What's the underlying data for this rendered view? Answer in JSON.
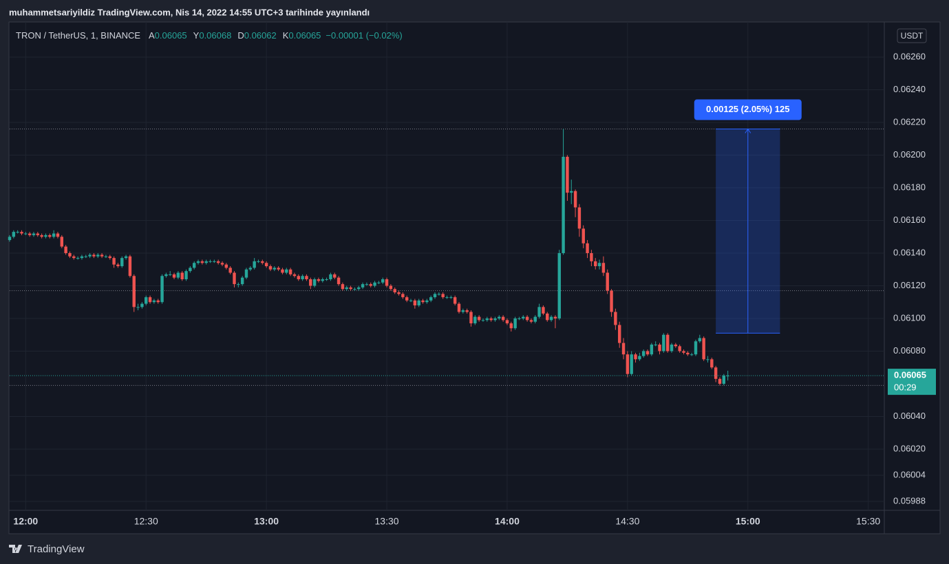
{
  "header": "muhammetsariyildiz TradingView.com, Nis 14, 2022 14:55 UTC+3 tarihinde yayınlandı",
  "footer": "TradingView",
  "chart_data": {
    "type": "candlestick",
    "legend": {
      "symbol": "TRON / TetherUS, 1, BINANCE",
      "fields": [
        {
          "label": "A",
          "value": 0.06065
        },
        {
          "label": "Y",
          "value": 0.06068
        },
        {
          "label": "D",
          "value": 0.06062
        },
        {
          "label": "K",
          "value": 0.06065
        }
      ],
      "change": "−0.00001 (−0.02%)"
    },
    "currency": "USDT",
    "countdown": "00:29",
    "up_color": "#26a69a",
    "down_color": "#ef5350",
    "grid": true,
    "xlim": [
      "11:56",
      "15:34"
    ],
    "xticks": [
      "12:00",
      "12:30",
      "13:00",
      "13:30",
      "14:00",
      "14:30",
      "15:00",
      "15:30"
    ],
    "ylim": [
      0.059825,
      0.062815
    ],
    "yticks": [
      {
        "value": 0.0626,
        "label": "0.06260"
      },
      {
        "value": 0.0624,
        "label": "0.06240"
      },
      {
        "value": 0.0622,
        "label": "0.06220"
      },
      {
        "value": 0.062,
        "label": "0.06200"
      },
      {
        "value": 0.0618,
        "label": "0.06180"
      },
      {
        "value": 0.0616,
        "label": "0.06160"
      },
      {
        "value": 0.0614,
        "label": "0.06140"
      },
      {
        "value": 0.0612,
        "label": "0.06120"
      },
      {
        "value": 0.061,
        "label": "0.06100"
      },
      {
        "value": 0.0608,
        "label": "0.06080"
      },
      {
        "value": 0.0604,
        "label": "0.06040"
      },
      {
        "value": 0.0602,
        "label": "0.06020"
      },
      {
        "value": 0.06004,
        "label": "0.06004"
      },
      {
        "value": 0.05988,
        "label": "0.05988"
      }
    ],
    "hlines": [
      0.06216,
      0.06117,
      0.06059
    ],
    "measure": {
      "from": 0.06091,
      "to": 0.06216,
      "x": [
        "14:52",
        "15:08"
      ],
      "label": "0.00125 (2.05%) 125"
    },
    "x": [
      "11:56",
      "11:57",
      "11:58",
      "11:59",
      "12:00",
      "12:01",
      "12:02",
      "12:03",
      "12:04",
      "12:05",
      "12:06",
      "12:07",
      "12:08",
      "12:09",
      "12:10",
      "12:11",
      "12:12",
      "12:13",
      "12:14",
      "12:15",
      "12:16",
      "12:17",
      "12:18",
      "12:19",
      "12:20",
      "12:21",
      "12:22",
      "12:23",
      "12:24",
      "12:25",
      "12:26",
      "12:27",
      "12:28",
      "12:29",
      "12:30",
      "12:31",
      "12:32",
      "12:33",
      "12:34",
      "12:35",
      "12:36",
      "12:37",
      "12:38",
      "12:39",
      "12:40",
      "12:41",
      "12:42",
      "12:43",
      "12:44",
      "12:45",
      "12:46",
      "12:47",
      "12:48",
      "12:49",
      "12:50",
      "12:51",
      "12:52",
      "12:53",
      "12:54",
      "12:55",
      "12:56",
      "12:57",
      "12:58",
      "12:59",
      "13:00",
      "13:01",
      "13:02",
      "13:03",
      "13:04",
      "13:05",
      "13:06",
      "13:07",
      "13:08",
      "13:09",
      "13:10",
      "13:11",
      "13:12",
      "13:13",
      "13:14",
      "13:15",
      "13:16",
      "13:17",
      "13:18",
      "13:19",
      "13:20",
      "13:21",
      "13:22",
      "13:23",
      "13:24",
      "13:25",
      "13:26",
      "13:27",
      "13:28",
      "13:29",
      "13:30",
      "13:31",
      "13:32",
      "13:33",
      "13:34",
      "13:35",
      "13:36",
      "13:37",
      "13:38",
      "13:39",
      "13:40",
      "13:41",
      "13:42",
      "13:43",
      "13:44",
      "13:45",
      "13:46",
      "13:47",
      "13:48",
      "13:49",
      "13:50",
      "13:51",
      "13:52",
      "13:53",
      "13:54",
      "13:55",
      "13:56",
      "13:57",
      "13:58",
      "13:59",
      "14:00",
      "14:01",
      "14:02",
      "14:03",
      "14:04",
      "14:05",
      "14:06",
      "14:07",
      "14:08",
      "14:09",
      "14:10",
      "14:11",
      "14:12",
      "14:13",
      "14:14",
      "14:15",
      "14:16",
      "14:17",
      "14:18",
      "14:19",
      "14:20",
      "14:21",
      "14:22",
      "14:23",
      "14:24",
      "14:25",
      "14:26",
      "14:27",
      "14:28",
      "14:29",
      "14:30",
      "14:31",
      "14:32",
      "14:33",
      "14:34",
      "14:35",
      "14:36",
      "14:37",
      "14:38",
      "14:39",
      "14:40",
      "14:41",
      "14:42",
      "14:43",
      "14:44",
      "14:45",
      "14:46",
      "14:47",
      "14:48",
      "14:49",
      "14:50",
      "14:51",
      "14:52",
      "14:53",
      "14:54",
      "14:55"
    ],
    "candles": [
      [
        0.06148,
        0.06151,
        0.06147,
        0.0615
      ],
      [
        0.0615,
        0.06154,
        0.06149,
        0.06153
      ],
      [
        0.06153,
        0.06154,
        0.06152,
        0.06153
      ],
      [
        0.06153,
        0.06154,
        0.06151,
        0.06152
      ],
      [
        0.06152,
        0.06153,
        0.06151,
        0.06152
      ],
      [
        0.06152,
        0.06153,
        0.0615,
        0.06151
      ],
      [
        0.06151,
        0.06153,
        0.0615,
        0.06152
      ],
      [
        0.06152,
        0.06153,
        0.0615,
        0.06151
      ],
      [
        0.06151,
        0.06152,
        0.06149,
        0.0615
      ],
      [
        0.0615,
        0.06152,
        0.06149,
        0.06151
      ],
      [
        0.06151,
        0.06152,
        0.06149,
        0.0615
      ],
      [
        0.0615,
        0.06154,
        0.06149,
        0.06152
      ],
      [
        0.06152,
        0.06153,
        0.06149,
        0.0615
      ],
      [
        0.0615,
        0.06151,
        0.06143,
        0.06144
      ],
      [
        0.06144,
        0.06145,
        0.06139,
        0.0614
      ],
      [
        0.0614,
        0.06141,
        0.06137,
        0.06138
      ],
      [
        0.06138,
        0.06139,
        0.06136,
        0.06137
      ],
      [
        0.06137,
        0.06138,
        0.06136,
        0.06137
      ],
      [
        0.06137,
        0.06139,
        0.06136,
        0.06138
      ],
      [
        0.06138,
        0.06139,
        0.06137,
        0.06138
      ],
      [
        0.06138,
        0.0614,
        0.06137,
        0.06139
      ],
      [
        0.06139,
        0.0614,
        0.06137,
        0.06138
      ],
      [
        0.06138,
        0.0614,
        0.06137,
        0.06139
      ],
      [
        0.06139,
        0.0614,
        0.06137,
        0.06138
      ],
      [
        0.06138,
        0.06139,
        0.06137,
        0.06138
      ],
      [
        0.06138,
        0.06139,
        0.06136,
        0.06137
      ],
      [
        0.06137,
        0.06138,
        0.06131,
        0.06133
      ],
      [
        0.06133,
        0.06134,
        0.06131,
        0.06132
      ],
      [
        0.06132,
        0.06138,
        0.06131,
        0.06137
      ],
      [
        0.06137,
        0.06139,
        0.06136,
        0.06138
      ],
      [
        0.06138,
        0.06139,
        0.06125,
        0.06126
      ],
      [
        0.06126,
        0.06127,
        0.06104,
        0.06107
      ],
      [
        0.06107,
        0.06109,
        0.06105,
        0.06107
      ],
      [
        0.06107,
        0.0611,
        0.06106,
        0.06109
      ],
      [
        0.06109,
        0.06114,
        0.06108,
        0.06113
      ],
      [
        0.06113,
        0.06114,
        0.06109,
        0.0611
      ],
      [
        0.0611,
        0.06112,
        0.06109,
        0.06111
      ],
      [
        0.06111,
        0.06112,
        0.06109,
        0.0611
      ],
      [
        0.0611,
        0.06127,
        0.06109,
        0.06126
      ],
      [
        0.06126,
        0.06128,
        0.06125,
        0.06127
      ],
      [
        0.06127,
        0.06129,
        0.06126,
        0.06127
      ],
      [
        0.06127,
        0.06128,
        0.06124,
        0.06125
      ],
      [
        0.06125,
        0.06129,
        0.06124,
        0.06128
      ],
      [
        0.06128,
        0.06129,
        0.06123,
        0.06124
      ],
      [
        0.06124,
        0.0613,
        0.06123,
        0.06129
      ],
      [
        0.06129,
        0.06132,
        0.06128,
        0.06131
      ],
      [
        0.06131,
        0.06135,
        0.0613,
        0.06134
      ],
      [
        0.06134,
        0.06136,
        0.06133,
        0.06135
      ],
      [
        0.06135,
        0.06136,
        0.06133,
        0.06134
      ],
      [
        0.06134,
        0.06136,
        0.06133,
        0.06135
      ],
      [
        0.06135,
        0.06136,
        0.06134,
        0.06135
      ],
      [
        0.06135,
        0.06136,
        0.06134,
        0.06135
      ],
      [
        0.06135,
        0.06136,
        0.06133,
        0.06134
      ],
      [
        0.06134,
        0.06135,
        0.06132,
        0.06133
      ],
      [
        0.06133,
        0.06134,
        0.0613,
        0.06131
      ],
      [
        0.06131,
        0.06132,
        0.06127,
        0.06128
      ],
      [
        0.06128,
        0.06129,
        0.06119,
        0.06121
      ],
      [
        0.06121,
        0.06122,
        0.06119,
        0.06121
      ],
      [
        0.06121,
        0.06126,
        0.0612,
        0.06125
      ],
      [
        0.06125,
        0.06131,
        0.06124,
        0.0613
      ],
      [
        0.0613,
        0.06132,
        0.06129,
        0.06131
      ],
      [
        0.06131,
        0.06137,
        0.0613,
        0.06135
      ],
      [
        0.06135,
        0.06136,
        0.06134,
        0.06135
      ],
      [
        0.06135,
        0.06136,
        0.06133,
        0.06134
      ],
      [
        0.06134,
        0.06135,
        0.06131,
        0.06132
      ],
      [
        0.06132,
        0.06133,
        0.06129,
        0.0613
      ],
      [
        0.0613,
        0.06132,
        0.06129,
        0.06131
      ],
      [
        0.06131,
        0.06132,
        0.06129,
        0.0613
      ],
      [
        0.0613,
        0.06131,
        0.06127,
        0.06128
      ],
      [
        0.06128,
        0.06131,
        0.06127,
        0.0613
      ],
      [
        0.0613,
        0.06131,
        0.06126,
        0.06127
      ],
      [
        0.06127,
        0.06128,
        0.06125,
        0.06126
      ],
      [
        0.06126,
        0.06127,
        0.06123,
        0.06124
      ],
      [
        0.06124,
        0.06127,
        0.06123,
        0.06126
      ],
      [
        0.06126,
        0.06127,
        0.06123,
        0.06124
      ],
      [
        0.06124,
        0.06125,
        0.06118,
        0.0612
      ],
      [
        0.0612,
        0.06125,
        0.06119,
        0.06124
      ],
      [
        0.06124,
        0.06125,
        0.06122,
        0.06123
      ],
      [
        0.06123,
        0.06125,
        0.06122,
        0.06124
      ],
      [
        0.06124,
        0.06125,
        0.06123,
        0.06124
      ],
      [
        0.06124,
        0.06128,
        0.06123,
        0.06127
      ],
      [
        0.06127,
        0.06128,
        0.06124,
        0.06125
      ],
      [
        0.06125,
        0.06126,
        0.0612,
        0.06121
      ],
      [
        0.06121,
        0.06122,
        0.06117,
        0.06118
      ],
      [
        0.06118,
        0.0612,
        0.06117,
        0.06119
      ],
      [
        0.06119,
        0.0612,
        0.06117,
        0.06118
      ],
      [
        0.06118,
        0.06119,
        0.06117,
        0.06118
      ],
      [
        0.06118,
        0.0612,
        0.06117,
        0.06119
      ],
      [
        0.06119,
        0.06122,
        0.06118,
        0.06121
      ],
      [
        0.06121,
        0.06122,
        0.0612,
        0.06121
      ],
      [
        0.06121,
        0.06122,
        0.06119,
        0.0612
      ],
      [
        0.0612,
        0.06123,
        0.06119,
        0.06122
      ],
      [
        0.06122,
        0.06123,
        0.06121,
        0.06122
      ],
      [
        0.06122,
        0.06125,
        0.06121,
        0.06124
      ],
      [
        0.06124,
        0.06125,
        0.06119,
        0.0612
      ],
      [
        0.0612,
        0.06121,
        0.06117,
        0.06118
      ],
      [
        0.06118,
        0.06119,
        0.06115,
        0.06116
      ],
      [
        0.06116,
        0.06117,
        0.06114,
        0.06115
      ],
      [
        0.06115,
        0.06116,
        0.06112,
        0.06113
      ],
      [
        0.06113,
        0.06114,
        0.0611,
        0.06111
      ],
      [
        0.06111,
        0.06112,
        0.0611,
        0.06111
      ],
      [
        0.06111,
        0.06112,
        0.06106,
        0.06108
      ],
      [
        0.06108,
        0.06112,
        0.06107,
        0.06111
      ],
      [
        0.06111,
        0.06112,
        0.06109,
        0.0611
      ],
      [
        0.0611,
        0.06112,
        0.06109,
        0.06111
      ],
      [
        0.06111,
        0.06114,
        0.0611,
        0.06113
      ],
      [
        0.06113,
        0.06116,
        0.06112,
        0.06115
      ],
      [
        0.06115,
        0.06116,
        0.06114,
        0.06115
      ],
      [
        0.06115,
        0.06116,
        0.06112,
        0.06113
      ],
      [
        0.06113,
        0.06114,
        0.06112,
        0.06113
      ],
      [
        0.06113,
        0.06114,
        0.06112,
        0.06113
      ],
      [
        0.06113,
        0.06114,
        0.06108,
        0.06109
      ],
      [
        0.06109,
        0.0611,
        0.06103,
        0.06104
      ],
      [
        0.06104,
        0.06106,
        0.06103,
        0.06105
      ],
      [
        0.06105,
        0.06106,
        0.06103,
        0.06104
      ],
      [
        0.06104,
        0.06105,
        0.06095,
        0.06097
      ],
      [
        0.06097,
        0.06102,
        0.06096,
        0.06101
      ],
      [
        0.06101,
        0.06102,
        0.06098,
        0.06099
      ],
      [
        0.06099,
        0.061,
        0.06098,
        0.06099
      ],
      [
        0.06099,
        0.06101,
        0.06098,
        0.061
      ],
      [
        0.061,
        0.06101,
        0.06098,
        0.06099
      ],
      [
        0.06099,
        0.06101,
        0.06098,
        0.061
      ],
      [
        0.061,
        0.06102,
        0.06099,
        0.06101
      ],
      [
        0.06101,
        0.06102,
        0.06098,
        0.06099
      ],
      [
        0.06099,
        0.061,
        0.06096,
        0.06097
      ],
      [
        0.06097,
        0.06098,
        0.06092,
        0.06094
      ],
      [
        0.06094,
        0.06101,
        0.06093,
        0.061
      ],
      [
        0.061,
        0.06101,
        0.06099,
        0.061
      ],
      [
        0.061,
        0.06102,
        0.06099,
        0.06101
      ],
      [
        0.06101,
        0.06102,
        0.06098,
        0.06099
      ],
      [
        0.06099,
        0.061,
        0.06097,
        0.06098
      ],
      [
        0.06098,
        0.06102,
        0.06097,
        0.06101
      ],
      [
        0.06101,
        0.06109,
        0.061,
        0.06107
      ],
      [
        0.06107,
        0.06108,
        0.06102,
        0.06103
      ],
      [
        0.06103,
        0.06104,
        0.06098,
        0.06099
      ],
      [
        0.06099,
        0.06102,
        0.06098,
        0.06101
      ],
      [
        0.06101,
        0.06102,
        0.06094,
        0.061
      ],
      [
        0.061,
        0.06142,
        0.06099,
        0.0614
      ],
      [
        0.0614,
        0.06216,
        0.06139,
        0.06199
      ],
      [
        0.06199,
        0.062,
        0.06172,
        0.06177
      ],
      [
        0.06177,
        0.06185,
        0.0617,
        0.06178
      ],
      [
        0.06178,
        0.06179,
        0.06162,
        0.06168
      ],
      [
        0.06168,
        0.0617,
        0.0615,
        0.06155
      ],
      [
        0.06155,
        0.06157,
        0.06143,
        0.06146
      ],
      [
        0.06146,
        0.06148,
        0.06137,
        0.0614
      ],
      [
        0.0614,
        0.06142,
        0.06132,
        0.06135
      ],
      [
        0.06135,
        0.06137,
        0.0613,
        0.06132
      ],
      [
        0.06132,
        0.06136,
        0.0613,
        0.06134
      ],
      [
        0.06134,
        0.06138,
        0.06126,
        0.06128
      ],
      [
        0.06128,
        0.0613,
        0.06115,
        0.06117
      ],
      [
        0.06117,
        0.06118,
        0.06101,
        0.06104
      ],
      [
        0.06104,
        0.06106,
        0.06093,
        0.06096
      ],
      [
        0.06096,
        0.06098,
        0.06082,
        0.06085
      ],
      [
        0.06085,
        0.06088,
        0.06075,
        0.06078
      ],
      [
        0.06078,
        0.0608,
        0.06064,
        0.06066
      ],
      [
        0.06066,
        0.0608,
        0.06065,
        0.06078
      ],
      [
        0.06078,
        0.06079,
        0.06073,
        0.06075
      ],
      [
        0.06075,
        0.06079,
        0.06074,
        0.06077
      ],
      [
        0.06077,
        0.06081,
        0.06076,
        0.0608
      ],
      [
        0.0608,
        0.06081,
        0.06077,
        0.06078
      ],
      [
        0.06078,
        0.06085,
        0.06077,
        0.06084
      ],
      [
        0.06084,
        0.06086,
        0.06083,
        0.06084
      ],
      [
        0.06084,
        0.06085,
        0.06078,
        0.0608
      ],
      [
        0.0608,
        0.06091,
        0.06079,
        0.0609
      ],
      [
        0.0609,
        0.06091,
        0.06079,
        0.0608
      ],
      [
        0.0608,
        0.06085,
        0.06079,
        0.06084
      ],
      [
        0.06084,
        0.06085,
        0.06082,
        0.06083
      ],
      [
        0.06083,
        0.06084,
        0.06079,
        0.0608
      ],
      [
        0.0608,
        0.06081,
        0.06078,
        0.06079
      ],
      [
        0.06079,
        0.0608,
        0.06077,
        0.06078
      ],
      [
        0.06078,
        0.06079,
        0.06077,
        0.06078
      ],
      [
        0.06078,
        0.06087,
        0.06077,
        0.06086
      ],
      [
        0.06086,
        0.0609,
        0.06085,
        0.06088
      ],
      [
        0.06088,
        0.06089,
        0.06074,
        0.06075
      ],
      [
        0.06075,
        0.06077,
        0.06073,
        0.06075
      ],
      [
        0.06075,
        0.06076,
        0.06069,
        0.0607
      ],
      [
        0.0607,
        0.06071,
        0.06061,
        0.06063
      ],
      [
        0.06063,
        0.06064,
        0.06059,
        0.0606
      ],
      [
        0.0606,
        0.06066,
        0.06059,
        0.06065
      ],
      [
        0.06065,
        0.06068,
        0.06062,
        0.06065
      ]
    ]
  }
}
